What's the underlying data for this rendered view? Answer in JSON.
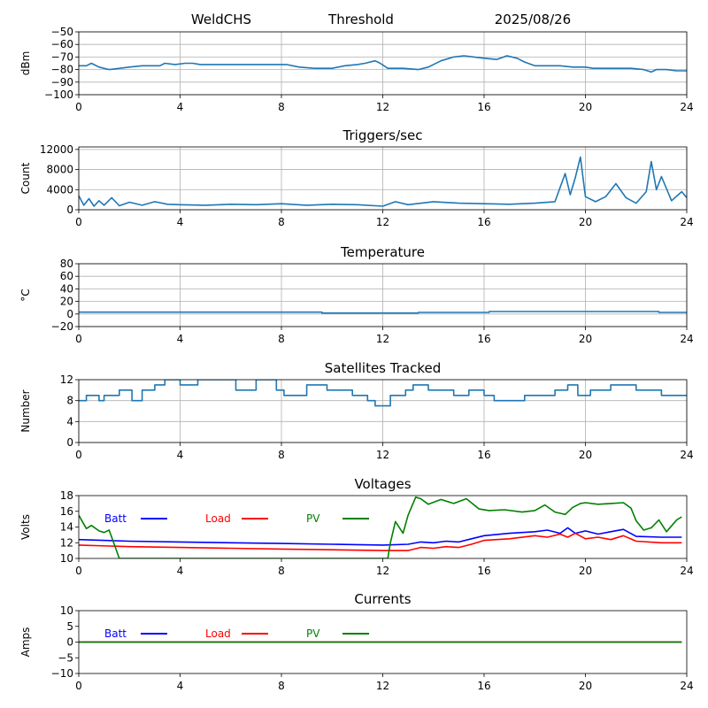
{
  "header": {
    "station": "WeldCHS",
    "mode": "Threshold",
    "date": "2025/08/26"
  },
  "colors": {
    "series": "#1f77b4",
    "batt": "#0000ff",
    "load": "#ff0000",
    "pv": "#008000",
    "grid": "#b0b0b0"
  },
  "chart_data": [
    {
      "type": "line",
      "title": "",
      "ylabel": "dBm",
      "xlim": [
        0,
        24
      ],
      "ylim": [
        -100,
        -50
      ],
      "xticks": [
        0,
        4,
        8,
        12,
        16,
        20,
        24
      ],
      "yticks": [
        -100,
        -90,
        -80,
        -70,
        -60,
        -50
      ],
      "grid": true,
      "series": [
        {
          "name": "",
          "color": "#1f77b4",
          "x": [
            0,
            0.3,
            0.5,
            0.8,
            1.2,
            2,
            2.5,
            3.2,
            3.4,
            3.8,
            4.2,
            4.5,
            4.8,
            5.5,
            6.5,
            7.5,
            8.2,
            8.7,
            9.3,
            10,
            10.5,
            11,
            11.3,
            11.7,
            11.9,
            12.2,
            12.8,
            13.4,
            13.8,
            14.3,
            14.8,
            15.2,
            15.6,
            16,
            16.5,
            16.9,
            17.3,
            17.6,
            18,
            18.5,
            19,
            19.5,
            20,
            20.3,
            20.8,
            21.3,
            21.8,
            22.3,
            22.6,
            22.8,
            23.2,
            23.6,
            24
          ],
          "y": [
            -77,
            -77,
            -75,
            -78,
            -80,
            -78,
            -77,
            -77,
            -75,
            -76,
            -75,
            -75,
            -76,
            -76,
            -76,
            -76,
            -76,
            -78,
            -79,
            -79,
            -77,
            -76,
            -75,
            -73,
            -75,
            -79,
            -79,
            -80,
            -78,
            -73,
            -70,
            -69,
            -70,
            -71,
            -72,
            -69,
            -71,
            -74,
            -77,
            -77,
            -77,
            -78,
            -78,
            -79,
            -79,
            -79,
            -79,
            -80,
            -82,
            -80,
            -80,
            -81,
            -81
          ]
        }
      ]
    },
    {
      "type": "line",
      "title": "Triggers/sec",
      "ylabel": "Count",
      "xlim": [
        0,
        24
      ],
      "ylim": [
        0,
        12500
      ],
      "xticks": [
        0,
        4,
        8,
        12,
        16,
        20,
        24
      ],
      "yticks": [
        0,
        4000,
        8000,
        12000
      ],
      "grid": true,
      "series": [
        {
          "name": "",
          "color": "#1f77b4",
          "x": [
            0,
            0.2,
            0.4,
            0.6,
            0.8,
            1.0,
            1.3,
            1.6,
            2.0,
            2.5,
            3.0,
            3.5,
            4.0,
            5.0,
            6.0,
            7.0,
            8.0,
            9.0,
            10.0,
            11.0,
            12.0,
            12.5,
            13.0,
            14.0,
            15.0,
            16.0,
            17.0,
            18.0,
            18.8,
            19.2,
            19.4,
            19.6,
            19.8,
            20.0,
            20.4,
            20.8,
            21.2,
            21.6,
            22.0,
            22.4,
            22.6,
            22.8,
            23.0,
            23.4,
            23.8,
            24
          ],
          "y": [
            2800,
            900,
            2200,
            700,
            1800,
            900,
            2400,
            800,
            1500,
            900,
            1600,
            1100,
            1000,
            900,
            1100,
            1000,
            1200,
            900,
            1100,
            1000,
            700,
            1600,
            1000,
            1600,
            1300,
            1200,
            1100,
            1300,
            1600,
            7200,
            3000,
            6400,
            10500,
            2600,
            1600,
            2600,
            5200,
            2400,
            1300,
            3600,
            9600,
            4000,
            6600,
            1800,
            3600,
            2400
          ]
        }
      ]
    },
    {
      "type": "line",
      "title": "Temperature",
      "ylabel": "°C",
      "xlim": [
        0,
        24
      ],
      "ylim": [
        -20,
        80
      ],
      "xticks": [
        0,
        4,
        8,
        12,
        16,
        20,
        24
      ],
      "yticks": [
        -20,
        0,
        20,
        40,
        60,
        80
      ],
      "grid": true,
      "series": [
        {
          "name": "",
          "color": "#1f77b4",
          "x": [
            0,
            9.6,
            9.6,
            13.4,
            13.4,
            16.2,
            16.2,
            22.9,
            22.9,
            24
          ],
          "y": [
            3,
            3,
            1.5,
            1.5,
            2.5,
            2.5,
            4,
            4,
            2.5,
            2.5
          ]
        }
      ]
    },
    {
      "type": "line",
      "title": "Satellites Tracked",
      "ylabel": "Number",
      "xlim": [
        0,
        24
      ],
      "ylim": [
        0,
        12
      ],
      "xticks": [
        0,
        4,
        8,
        12,
        16,
        20,
        24
      ],
      "yticks": [
        0,
        4,
        8,
        12
      ],
      "grid": true,
      "series": [
        {
          "name": "",
          "color": "#1f77b4",
          "x": [
            0,
            0.3,
            0.3,
            0.8,
            0.8,
            1.0,
            1.0,
            1.6,
            1.6,
            2.1,
            2.1,
            2.5,
            2.5,
            3.0,
            3.0,
            3.4,
            3.4,
            4.0,
            4.0,
            4.7,
            4.7,
            6.2,
            6.2,
            7.0,
            7.0,
            7.8,
            7.8,
            8.1,
            8.1,
            9.0,
            9.0,
            9.8,
            9.8,
            10.8,
            10.8,
            11.4,
            11.4,
            11.7,
            11.7,
            12.3,
            12.3,
            12.9,
            12.9,
            13.2,
            13.2,
            13.8,
            13.8,
            14.8,
            14.8,
            15.4,
            15.4,
            16.0,
            16.0,
            16.4,
            16.4,
            17.6,
            17.6,
            18.8,
            18.8,
            19.3,
            19.3,
            19.7,
            19.7,
            20.2,
            20.2,
            21.0,
            21.0,
            22.0,
            22.0,
            23.0,
            23.0,
            24
          ],
          "y": [
            8,
            8,
            9,
            9,
            8,
            8,
            9,
            9,
            10,
            10,
            8,
            8,
            10,
            10,
            11,
            11,
            12,
            12,
            11,
            11,
            12,
            12,
            10,
            10,
            12,
            12,
            10,
            10,
            9,
            9,
            11,
            11,
            10,
            10,
            9,
            9,
            8,
            8,
            7,
            7,
            9,
            9,
            10,
            10,
            11,
            11,
            10,
            10,
            9,
            9,
            10,
            10,
            9,
            9,
            8,
            8,
            9,
            9,
            10,
            10,
            11,
            11,
            9,
            9,
            10,
            10,
            11,
            11,
            10,
            10,
            9,
            9
          ]
        }
      ]
    },
    {
      "type": "line",
      "title": "Voltages",
      "ylabel": "Volts",
      "xlim": [
        0,
        24
      ],
      "ylim": [
        10,
        18
      ],
      "xticks": [
        0,
        4,
        8,
        12,
        16,
        20,
        24
      ],
      "yticks": [
        10,
        12,
        14,
        16,
        18
      ],
      "grid": false,
      "legend": "top-left",
      "series": [
        {
          "name": "Batt",
          "color": "#0000ff",
          "x": [
            0,
            2,
            4,
            6,
            8,
            10,
            12,
            13,
            13.5,
            14,
            14.5,
            15,
            15.5,
            16,
            17,
            18,
            18.5,
            19,
            19.3,
            19.6,
            20,
            20.5,
            21,
            21.5,
            22,
            23,
            23.8
          ],
          "y": [
            12.4,
            12.2,
            12.1,
            12.0,
            11.9,
            11.8,
            11.7,
            11.8,
            12.1,
            12.0,
            12.2,
            12.1,
            12.5,
            12.9,
            13.2,
            13.4,
            13.6,
            13.2,
            13.9,
            13.2,
            13.5,
            13.1,
            13.4,
            13.7,
            12.8,
            12.7,
            12.7
          ]
        },
        {
          "name": "Load",
          "color": "#ff0000",
          "x": [
            0,
            2,
            4,
            6,
            8,
            10,
            12,
            13,
            13.5,
            14,
            14.5,
            15,
            15.5,
            16,
            17,
            18,
            18.5,
            19,
            19.3,
            19.6,
            20,
            20.5,
            21,
            21.5,
            22,
            23,
            23.8
          ],
          "y": [
            11.7,
            11.5,
            11.4,
            11.3,
            11.2,
            11.1,
            11.0,
            11.0,
            11.4,
            11.3,
            11.5,
            11.4,
            11.8,
            12.3,
            12.5,
            12.9,
            12.7,
            13.1,
            12.7,
            13.2,
            12.5,
            12.7,
            12.4,
            12.9,
            12.2,
            12.0,
            12.0
          ]
        },
        {
          "name": "PV",
          "color": "#008000",
          "x": [
            0,
            0.3,
            0.5,
            0.8,
            1.0,
            1.2,
            1.4,
            1.6,
            12.2,
            12.3,
            12.5,
            12.8,
            13.0,
            13.3,
            13.5,
            13.8,
            14.3,
            14.8,
            15.3,
            15.8,
            16.2,
            16.8,
            17.5,
            18.0,
            18.4,
            18.8,
            19.2,
            19.5,
            19.8,
            20.0,
            20.5,
            21.0,
            21.5,
            21.8,
            22.0,
            22.3,
            22.6,
            22.9,
            23.2,
            23.6,
            23.8
          ],
          "y": [
            15.5,
            13.8,
            14.2,
            13.5,
            13.3,
            13.6,
            11.8,
            10.0,
            10.0,
            12.0,
            14.7,
            13.2,
            15.5,
            17.8,
            17.6,
            16.9,
            17.5,
            17.0,
            17.6,
            16.3,
            16.1,
            16.2,
            15.9,
            16.1,
            16.8,
            15.9,
            15.6,
            16.5,
            17.0,
            17.1,
            16.9,
            17.0,
            17.1,
            16.4,
            14.8,
            13.6,
            13.9,
            14.9,
            13.4,
            14.9,
            15.3
          ]
        }
      ]
    },
    {
      "type": "line",
      "title": "Currents",
      "ylabel": "Amps",
      "xlim": [
        0,
        24
      ],
      "ylim": [
        -10,
        10
      ],
      "xticks": [
        0,
        4,
        8,
        12,
        16,
        20,
        24
      ],
      "yticks": [
        -10,
        -5,
        0,
        5,
        10
      ],
      "grid": false,
      "legend": "top-left",
      "series": [
        {
          "name": "Batt",
          "color": "#0000ff",
          "x": [
            0,
            23.8
          ],
          "y": [
            0,
            0
          ]
        },
        {
          "name": "Load",
          "color": "#ff0000",
          "x": [
            0,
            23.8
          ],
          "y": [
            0,
            0
          ]
        },
        {
          "name": "PV",
          "color": "#008000",
          "x": [
            0,
            23.8
          ],
          "y": [
            0,
            0
          ]
        }
      ]
    }
  ]
}
